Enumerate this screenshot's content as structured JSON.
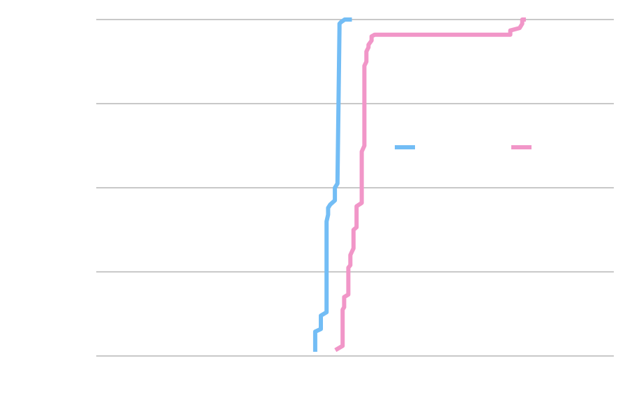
{
  "chart_data": {
    "type": "line",
    "title": "",
    "xlabel": "",
    "ylabel": "",
    "xlim": [
      0,
      1
    ],
    "ylim": [
      0,
      4
    ],
    "grid": true,
    "legend": "right",
    "series": [
      {
        "color": "#73bdf5",
        "x": [
          0.423,
          0.423,
          0.434,
          0.434,
          0.445,
          0.445,
          0.448,
          0.448,
          0.452,
          0.461,
          0.461,
          0.466,
          0.47,
          0.47,
          0.473,
          0.48,
          0.494
        ],
        "y": [
          0.05,
          0.29,
          0.32,
          0.48,
          0.52,
          1.6,
          1.68,
          1.76,
          1.8,
          1.85,
          2.0,
          2.05,
          3.9,
          3.95,
          3.97,
          4.0,
          4.0
        ]
      },
      {
        "color": "#f196c8",
        "x": [
          0.462,
          0.476,
          0.476,
          0.479,
          0.479,
          0.487,
          0.487,
          0.491,
          0.491,
          0.497,
          0.497,
          0.503,
          0.503,
          0.513,
          0.513,
          0.518,
          0.518,
          0.522,
          0.522,
          0.526,
          0.526,
          0.532,
          0.532,
          0.538,
          0.8,
          0.8,
          0.818,
          0.823,
          0.823,
          0.83
        ],
        "y": [
          0.07,
          0.12,
          0.55,
          0.58,
          0.7,
          0.73,
          1.05,
          1.08,
          1.2,
          1.28,
          1.5,
          1.53,
          1.78,
          1.82,
          2.43,
          2.5,
          3.45,
          3.5,
          3.62,
          3.67,
          3.7,
          3.75,
          3.8,
          3.82,
          3.82,
          3.87,
          3.9,
          3.95,
          4.0,
          4.0
        ]
      }
    ]
  }
}
